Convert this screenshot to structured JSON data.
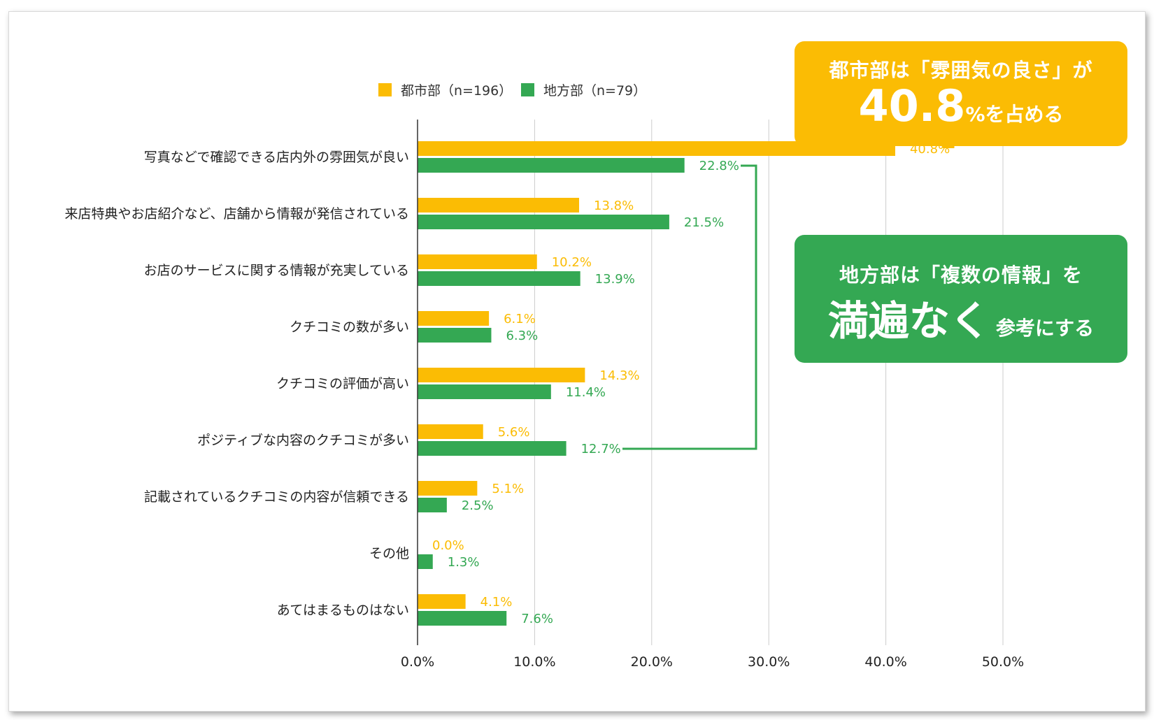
{
  "chart_data": {
    "type": "bar",
    "orientation": "horizontal",
    "categories": [
      "写真などで確認できる店内外の雰囲気が良い",
      "来店特典やお店紹介など、店舗から情報が発信されている",
      "お店のサービスに関する情報が充実している",
      "クチコミの数が多い",
      "クチコミの評価が高い",
      "ポジティブな内容のクチコミが多い",
      "記載されているクチコミの内容が信頼できる",
      "その他",
      "あてはまるものはない"
    ],
    "series": [
      {
        "name": "都市部（n=196）",
        "color": "#FBBC04",
        "values": [
          40.8,
          13.8,
          10.2,
          6.1,
          14.3,
          5.6,
          5.1,
          0.0,
          4.1
        ],
        "labels": [
          "40.8%",
          "13.8%",
          "10.2%",
          "6.1%",
          "14.3%",
          "5.6%",
          "5.1%",
          "0.0%",
          "4.1%"
        ]
      },
      {
        "name": "地方部（n=79）",
        "color": "#34A853",
        "values": [
          22.8,
          21.5,
          13.9,
          6.3,
          11.4,
          12.7,
          2.5,
          1.3,
          7.6
        ],
        "labels": [
          "22.8%",
          "21.5%",
          "13.9%",
          "6.3%",
          "11.4%",
          "12.7%",
          "2.5%",
          "1.3%",
          "7.6%"
        ]
      }
    ],
    "xlim": [
      0,
      50
    ],
    "xticks": [
      "0.0%",
      "10.0%",
      "20.0%",
      "30.0%",
      "40.0%",
      "50.0%"
    ],
    "grid": true,
    "legend_position": "top"
  },
  "callouts": {
    "urban": {
      "line1": "都市部は「雰囲気の良さ」が",
      "big": "40.8",
      "rest": "%を占める",
      "color": "#FBBC04"
    },
    "rural": {
      "line1": "地方部は「複数の情報」を",
      "big": "満遍なく",
      "rest": "参考にする",
      "color": "#34A853"
    }
  }
}
